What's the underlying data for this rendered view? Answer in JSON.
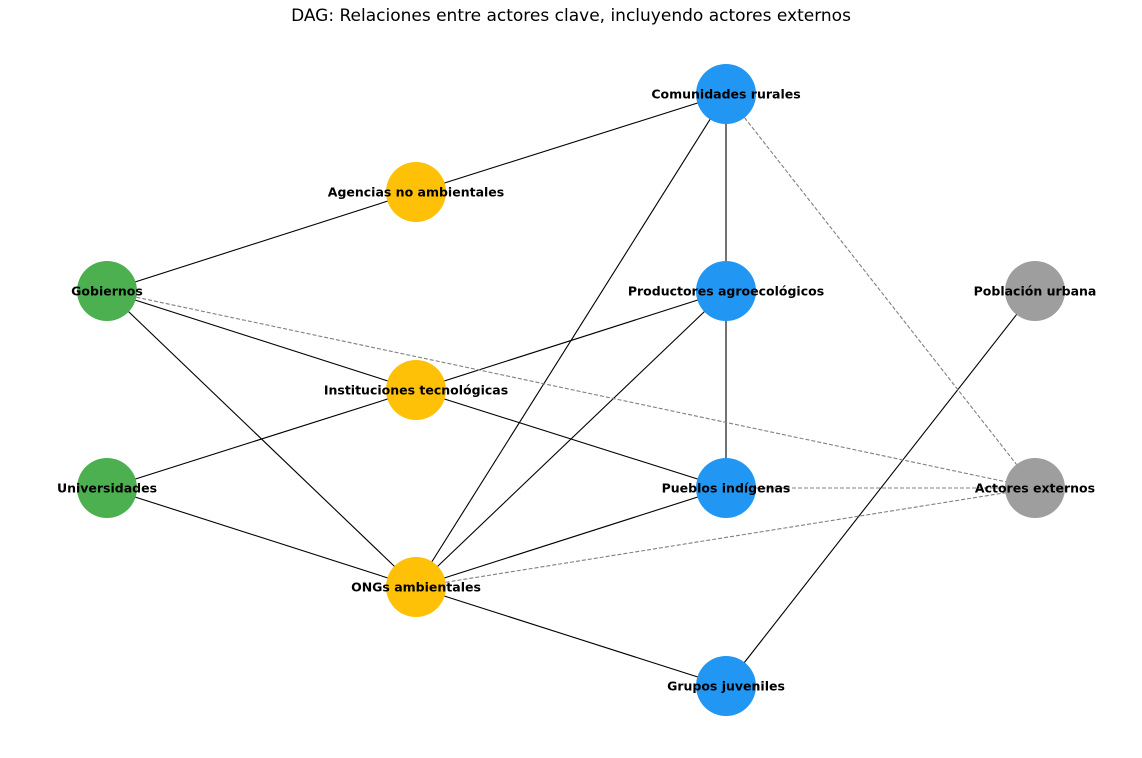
{
  "title": "DAG: Relaciones entre actores clave, incluyendo actores externos",
  "colors": {
    "green": "#4CAF50",
    "yellow": "#FFC107",
    "blue": "#2196F3",
    "gray": "#9E9E9E",
    "solid_edge": "#000000",
    "dashed_edge": "#808080"
  },
  "nodes": [
    {
      "id": "gobiernos",
      "label": "Gobiernos",
      "group": "green"
    },
    {
      "id": "universidades",
      "label": "Universidades",
      "group": "green"
    },
    {
      "id": "agencias",
      "label": "Agencias no ambientales",
      "group": "yellow"
    },
    {
      "id": "instituciones",
      "label": "Instituciones tecnológicas",
      "group": "yellow"
    },
    {
      "id": "ongs",
      "label": "ONGs ambientales",
      "group": "yellow"
    },
    {
      "id": "comunidades",
      "label": "Comunidades rurales",
      "group": "blue"
    },
    {
      "id": "productores",
      "label": "Productores agroecológicos",
      "group": "blue"
    },
    {
      "id": "pueblos",
      "label": "Pueblos indígenas",
      "group": "blue"
    },
    {
      "id": "grupos",
      "label": "Grupos juveniles",
      "group": "blue"
    },
    {
      "id": "poblacion",
      "label": "Población urbana",
      "group": "gray"
    },
    {
      "id": "actores",
      "label": "Actores externos",
      "group": "gray"
    }
  ],
  "edges": [
    {
      "from": "gobiernos",
      "to": "agencias",
      "style": "solid"
    },
    {
      "from": "gobiernos",
      "to": "instituciones",
      "style": "solid"
    },
    {
      "from": "gobiernos",
      "to": "ongs",
      "style": "solid"
    },
    {
      "from": "universidades",
      "to": "instituciones",
      "style": "solid"
    },
    {
      "from": "universidades",
      "to": "ongs",
      "style": "solid"
    },
    {
      "from": "agencias",
      "to": "comunidades",
      "style": "solid"
    },
    {
      "from": "instituciones",
      "to": "productores",
      "style": "solid"
    },
    {
      "from": "instituciones",
      "to": "pueblos",
      "style": "solid"
    },
    {
      "from": "ongs",
      "to": "comunidades",
      "style": "solid"
    },
    {
      "from": "ongs",
      "to": "productores",
      "style": "solid"
    },
    {
      "from": "ongs",
      "to": "pueblos",
      "style": "solid"
    },
    {
      "from": "ongs",
      "to": "grupos",
      "style": "solid"
    },
    {
      "from": "comunidades",
      "to": "productores",
      "style": "solid"
    },
    {
      "from": "productores",
      "to": "pueblos",
      "style": "solid"
    },
    {
      "from": "grupos",
      "to": "poblacion",
      "style": "solid"
    },
    {
      "from": "gobiernos",
      "to": "actores",
      "style": "dashed"
    },
    {
      "from": "comunidades",
      "to": "actores",
      "style": "dashed"
    },
    {
      "from": "pueblos",
      "to": "actores",
      "style": "dashed"
    },
    {
      "from": "ongs",
      "to": "actores",
      "style": "dashed"
    }
  ]
}
